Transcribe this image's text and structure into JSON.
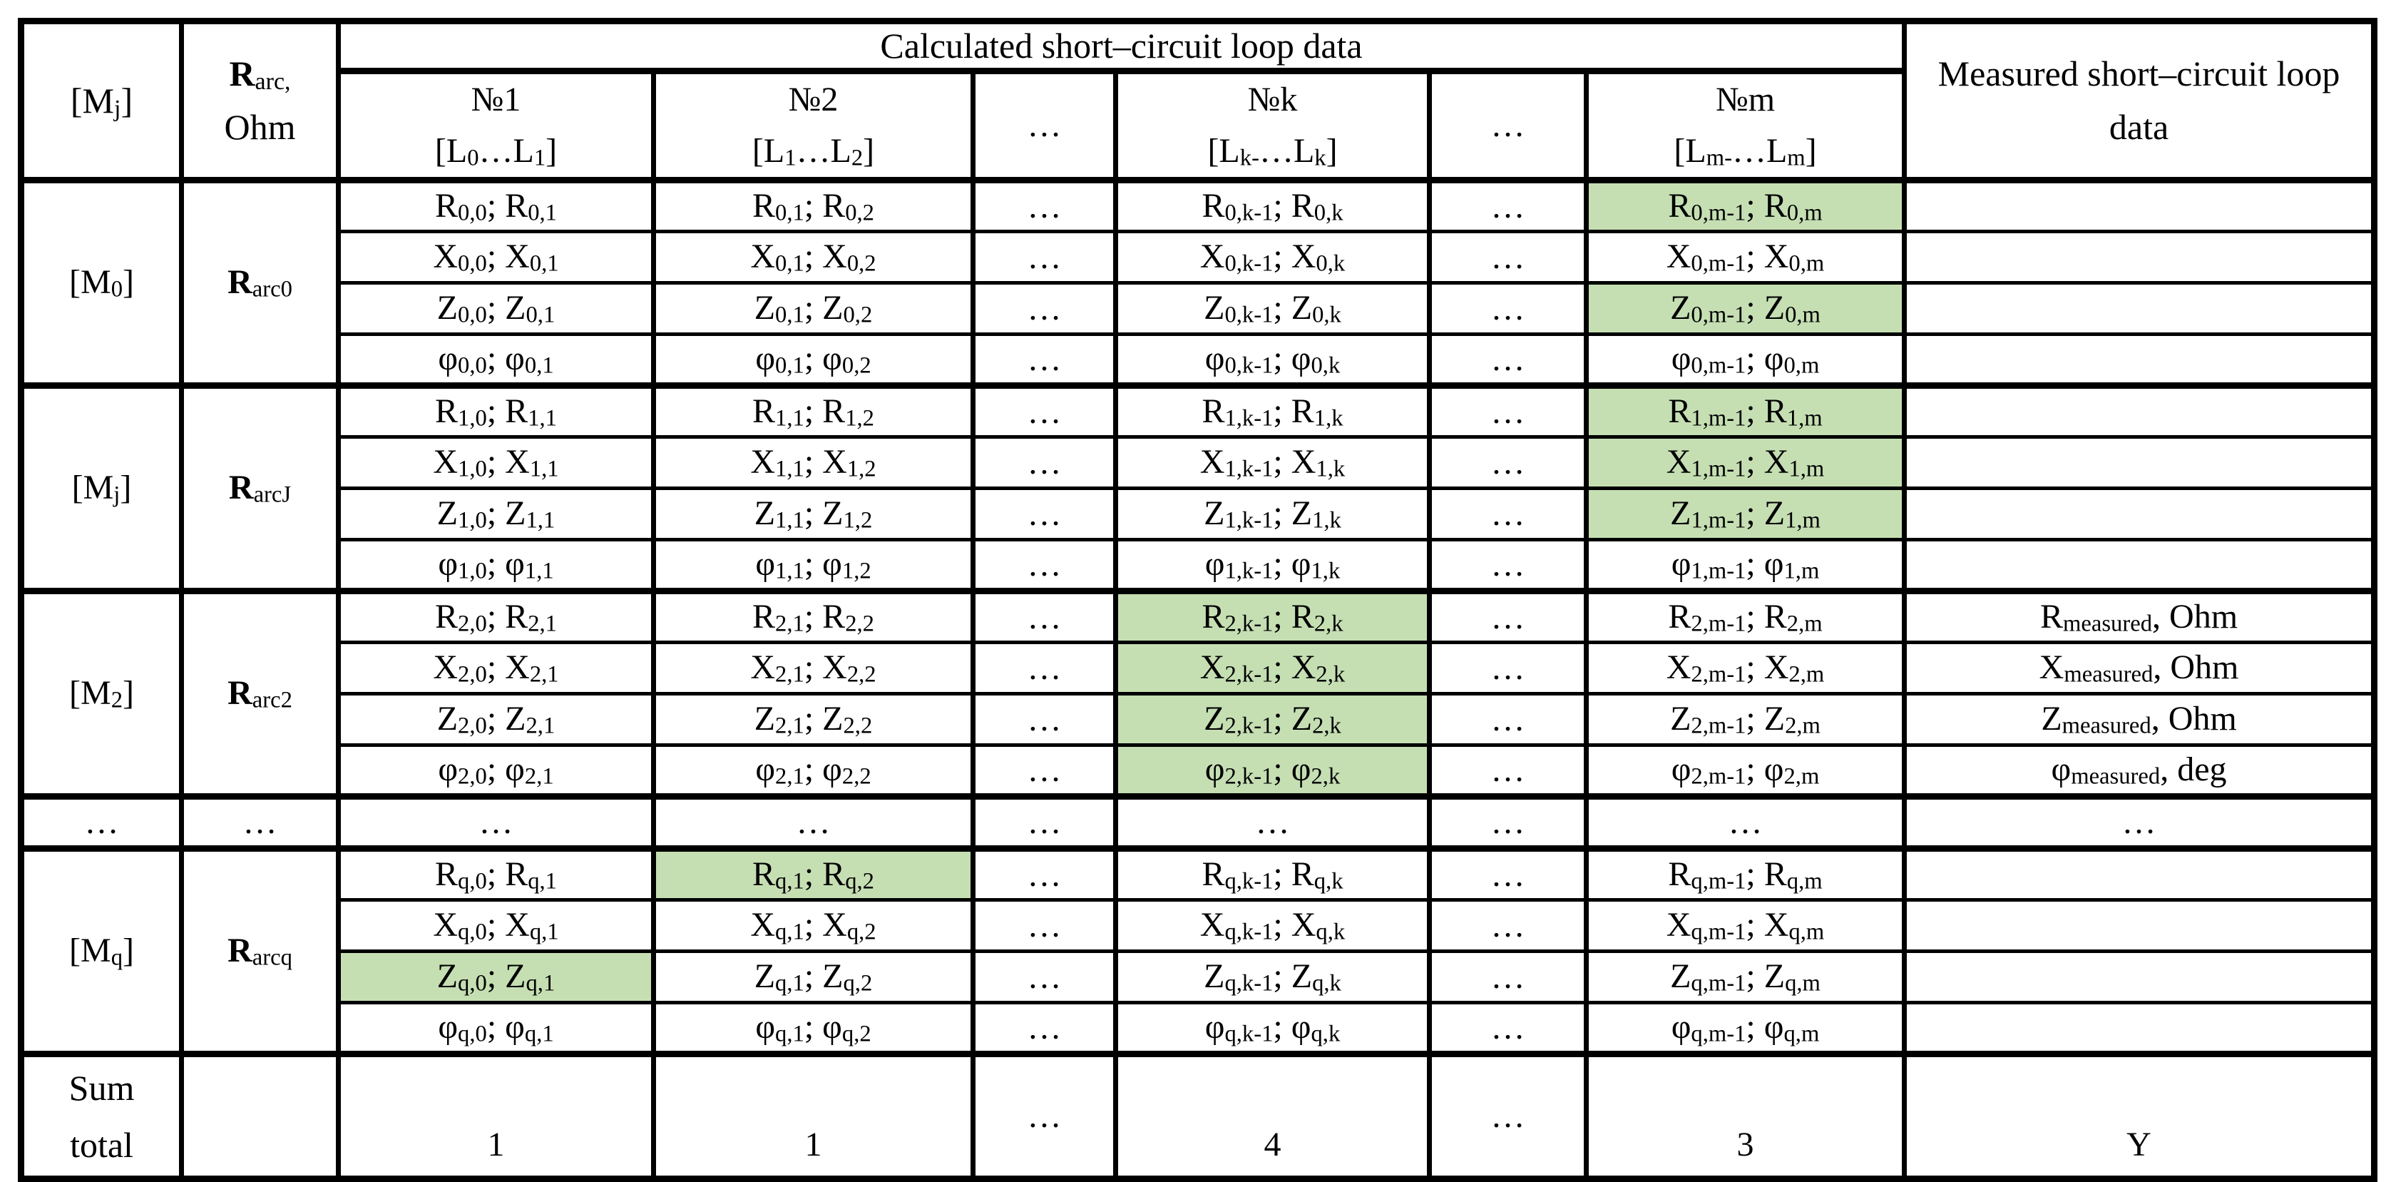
{
  "colors": {
    "highlight": "#c5dfb3"
  },
  "dots": "…",
  "header": {
    "mj": "[M_{j}]",
    "rarc": "**R**_{arc,}\nOhm",
    "calculated": "Calculated short–circuit loop data",
    "measured": "Measured short–circuit loop\ndata",
    "loop1": "№1\n[L_{0}…L_{1}]",
    "loop2": "№2\n[L_{1}…L_{2}]",
    "loopk": "№k\n[L_{k-}…L_{k}]",
    "loopm": "№m\n[L_{m-}…L_{m}]"
  },
  "groups": [
    {
      "label": "[M_{0}]",
      "rarc": "**R**_{arc0}",
      "rows": [
        {
          "cells": [
            "R_{0,0}; R_{0,1}",
            "R_{0,1}; R_{0,2}",
            "R_{0,k-1}; R_{0,k}",
            "R_{0,m-1}; R_{0,m}"
          ],
          "measured": ""
        },
        {
          "cells": [
            "X_{0,0}; X_{0,1}",
            "X_{0,1}; X_{0,2}",
            "X_{0,k-1}; X_{0,k}",
            "X_{0,m-1}; X_{0,m}"
          ],
          "measured": ""
        },
        {
          "cells": [
            "Z_{0,0}; Z_{0,1}",
            "Z_{0,1}; Z_{0,2}",
            "Z_{0,k-1}; Z_{0,k}",
            "Z_{0,m-1}; Z_{0,m}"
          ],
          "measured": ""
        },
        {
          "cells": [
            "φ_{0,0}; φ_{0,1}",
            "φ_{0,1}; φ_{0,2}",
            "φ_{0,k-1}; φ_{0,k}",
            "φ_{0,m-1}; φ_{0,m}"
          ],
          "measured": ""
        }
      ]
    },
    {
      "label": "[M_{j}]",
      "rarc": "**R**_{arcJ}",
      "rows": [
        {
          "cells": [
            "R_{1,0}; R_{1,1}",
            "R_{1,1}; R_{1,2}",
            "R_{1,k-1}; R_{1,k}",
            "R_{1,m-1}; R_{1,m}"
          ],
          "measured": ""
        },
        {
          "cells": [
            "X_{1,0}; X_{1,1}",
            "X_{1,1}; X_{1,2}",
            "X_{1,k-1}; X_{1,k}",
            "X_{1,m-1}; X_{1,m}"
          ],
          "measured": ""
        },
        {
          "cells": [
            "Z_{1,0}; Z_{1,1}",
            "Z_{1,1}; Z_{1,2}",
            "Z_{1,k-1}; Z_{1,k}",
            "Z_{1,m-1}; Z_{1,m}"
          ],
          "measured": ""
        },
        {
          "cells": [
            "φ_{1,0}; φ_{1,1}",
            "φ_{1,1}; φ_{1,2}",
            "φ_{1,k-1}; φ_{1,k}",
            "φ_{1,m-1}; φ_{1,m}"
          ],
          "measured": ""
        }
      ]
    },
    {
      "label": "[M_{2}]",
      "rarc": "**R**_{arc2}",
      "rows": [
        {
          "cells": [
            "R_{2,0}; R_{2,1}",
            "R_{2,1}; R_{2,2}",
            "R_{2,k-1}; R_{2,k}",
            "R_{2,m-1}; R_{2,m}"
          ],
          "measured": "R_{measured}, Ohm"
        },
        {
          "cells": [
            "X_{2,0}; X_{2,1}",
            "X_{2,1}; X_{2,2}",
            "X_{2,k-1}; X_{2,k}",
            "X_{2,m-1}; X_{2,m}"
          ],
          "measured": "X_{measured}, Ohm"
        },
        {
          "cells": [
            "Z_{2,0}; Z_{2,1}",
            "Z_{2,1}; Z_{2,2}",
            "Z_{2,k-1}; Z_{2,k}",
            "Z_{2,m-1}; Z_{2,m}"
          ],
          "measured": "Z_{measured}, Ohm"
        },
        {
          "cells": [
            "φ_{2,0}; φ_{2,1}",
            "φ_{2,1}; φ_{2,2}",
            "φ_{2,k-1}; φ_{2,k}",
            "φ_{2,m-1}; φ_{2,m}"
          ],
          "measured": "φ_{measured}, deg"
        }
      ]
    },
    {
      "label": "[M_{q}]",
      "rarc": "**R**_{arcq}",
      "rows": [
        {
          "cells": [
            "R_{q,0}; R_{q,1}",
            "R_{q,1}; R_{q,2}",
            "R_{q,k-1}; R_{q,k}",
            "R_{q,m-1}; R_{q,m}"
          ],
          "measured": ""
        },
        {
          "cells": [
            "X_{q,0}; X_{q,1}",
            "X_{q,1}; X_{q,2}",
            "X_{q,k-1}; X_{q,k}",
            "X_{q,m-1}; X_{q,m}"
          ],
          "measured": ""
        },
        {
          "cells": [
            "Z_{q,0}; Z_{q,1}",
            "Z_{q,1}; Z_{q,2}",
            "Z_{q,k-1}; Z_{q,k}",
            "Z_{q,m-1}; Z_{q,m}"
          ],
          "measured": ""
        },
        {
          "cells": [
            "φ_{q,0}; φ_{q,1}",
            "φ_{q,1}; φ_{q,2}",
            "φ_{q,k-1}; φ_{q,k}",
            "φ_{q,m-1}; φ_{q,m}"
          ],
          "measured": ""
        }
      ]
    }
  ],
  "sum": {
    "label": "Sum\ntotal",
    "no1": "1",
    "no2": "1",
    "nok": "4",
    "nom": "3",
    "measured": "Y"
  }
}
